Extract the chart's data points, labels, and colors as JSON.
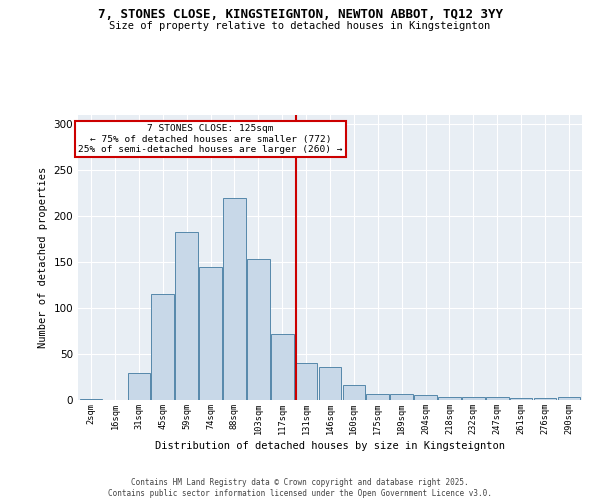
{
  "title_line1": "7, STONES CLOSE, KINGSTEIGNTON, NEWTON ABBOT, TQ12 3YY",
  "title_line2": "Size of property relative to detached houses in Kingsteignton",
  "xlabel": "Distribution of detached houses by size in Kingsteignton",
  "ylabel": "Number of detached properties",
  "categories": [
    "2sqm",
    "16sqm",
    "31sqm",
    "45sqm",
    "59sqm",
    "74sqm",
    "88sqm",
    "103sqm",
    "117sqm",
    "131sqm",
    "146sqm",
    "160sqm",
    "175sqm",
    "189sqm",
    "204sqm",
    "218sqm",
    "232sqm",
    "247sqm",
    "261sqm",
    "276sqm",
    "290sqm"
  ],
  "bar_heights": [
    1,
    0,
    29,
    115,
    183,
    145,
    220,
    153,
    72,
    40,
    36,
    16,
    7,
    7,
    5,
    3,
    3,
    3,
    2,
    2,
    3
  ],
  "bar_color": "#c8d8e8",
  "bar_edge_color": "#5588aa",
  "vline_color": "#cc0000",
  "annotation_box_text": "7 STONES CLOSE: 125sqm\n← 75% of detached houses are smaller (772)\n25% of semi-detached houses are larger (260) →",
  "annotation_box_color": "#cc0000",
  "annotation_box_bg": "#ffffff",
  "ylim": [
    0,
    310
  ],
  "yticks": [
    0,
    50,
    100,
    150,
    200,
    250,
    300
  ],
  "background_color": "#e8eef4",
  "grid_color": "#ffffff",
  "footer_line1": "Contains HM Land Registry data © Crown copyright and database right 2025.",
  "footer_line2": "Contains public sector information licensed under the Open Government Licence v3.0."
}
